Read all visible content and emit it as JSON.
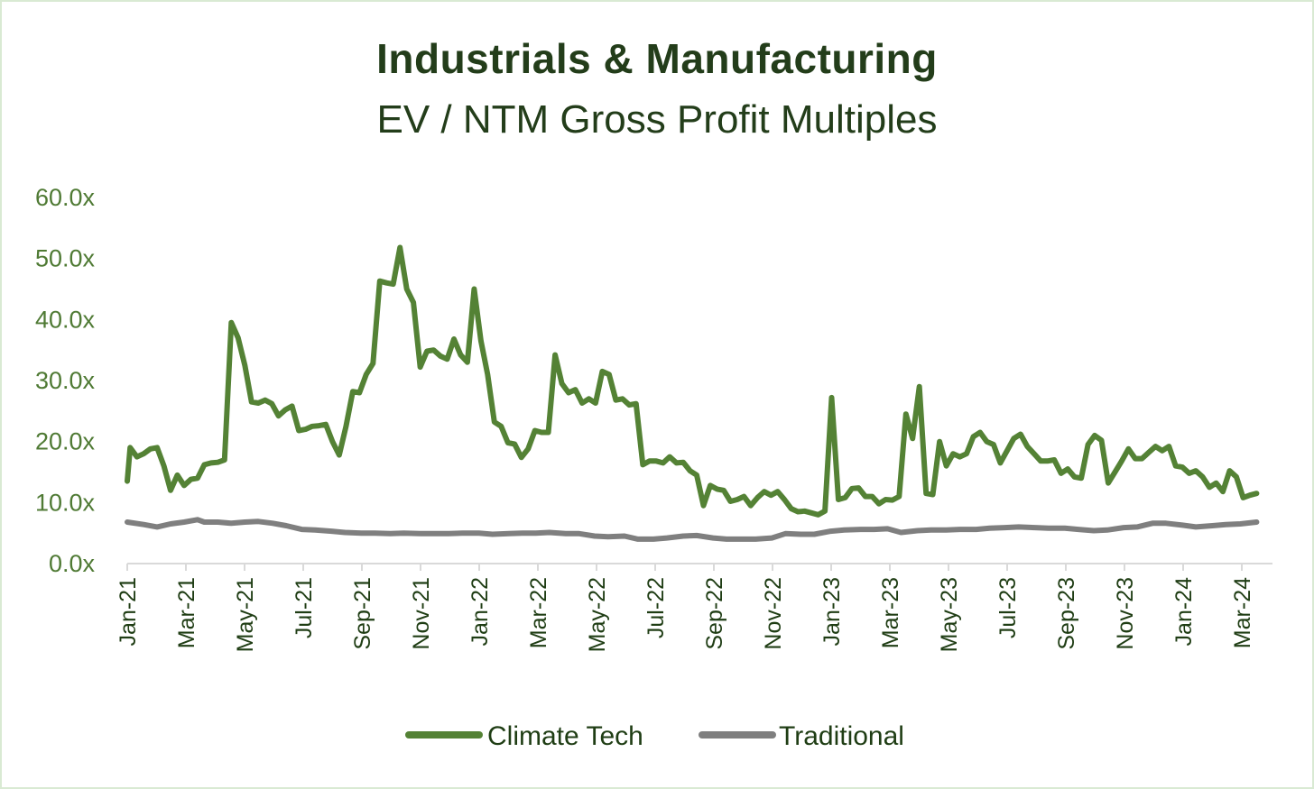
{
  "chart_data": {
    "type": "line",
    "title": "Industrials & Manufacturing",
    "subtitle": "EV / NTM Gross Profit Multiples",
    "xlabel": "",
    "ylabel": "",
    "ylim": [
      0,
      60
    ],
    "yticks": [
      "0.0x",
      "10.0x",
      "20.0x",
      "30.0x",
      "40.0x",
      "50.0x",
      "60.0x"
    ],
    "xticks": [
      "Jan-21",
      "Mar-21",
      "May-21",
      "Jul-21",
      "Sep-21",
      "Nov-21",
      "Jan-22",
      "Mar-22",
      "May-22",
      "Jul-22",
      "Sep-22",
      "Nov-22",
      "Jan-23",
      "Mar-23",
      "May-23",
      "Jul-23",
      "Sep-23",
      "Nov-23",
      "Jan-24",
      "Mar-24"
    ],
    "x_start": "2021-01-01",
    "x_end": "2024-03-25",
    "grid": false,
    "legend": "bottom",
    "series": [
      {
        "name": "Climate Tech",
        "color": "#548235",
        "points": [
          [
            "2021-01-01",
            13.5
          ],
          [
            "2021-01-04",
            19
          ],
          [
            "2021-01-11",
            17.5
          ],
          [
            "2021-01-18",
            18
          ],
          [
            "2021-01-25",
            18.8
          ],
          [
            "2021-02-01",
            19
          ],
          [
            "2021-02-08",
            16
          ],
          [
            "2021-02-15",
            12
          ],
          [
            "2021-02-22",
            14.5
          ],
          [
            "2021-03-01",
            12.8
          ],
          [
            "2021-03-08",
            13.8
          ],
          [
            "2021-03-15",
            14
          ],
          [
            "2021-03-22",
            16.2
          ],
          [
            "2021-03-29",
            16.5
          ],
          [
            "2021-04-05",
            16.6
          ],
          [
            "2021-04-12",
            17
          ],
          [
            "2021-04-19",
            39.5
          ],
          [
            "2021-04-26",
            37
          ],
          [
            "2021-05-03",
            32.5
          ],
          [
            "2021-05-10",
            26.5
          ],
          [
            "2021-05-17",
            26.3
          ],
          [
            "2021-05-24",
            26.8
          ],
          [
            "2021-05-31",
            26.2
          ],
          [
            "2021-06-07",
            24.2
          ],
          [
            "2021-06-14",
            25.2
          ],
          [
            "2021-06-21",
            25.8
          ],
          [
            "2021-06-28",
            21.8
          ],
          [
            "2021-07-05",
            22
          ],
          [
            "2021-07-12",
            22.5
          ],
          [
            "2021-07-19",
            22.6
          ],
          [
            "2021-07-26",
            22.8
          ],
          [
            "2021-08-02",
            20
          ],
          [
            "2021-08-09",
            17.8
          ],
          [
            "2021-08-16",
            22.5
          ],
          [
            "2021-08-23",
            28.2
          ],
          [
            "2021-08-30",
            28
          ],
          [
            "2021-09-06",
            31
          ],
          [
            "2021-09-13",
            32.8
          ],
          [
            "2021-09-20",
            46.3
          ],
          [
            "2021-09-27",
            46
          ],
          [
            "2021-10-04",
            45.8
          ],
          [
            "2021-10-11",
            51.8
          ],
          [
            "2021-10-18",
            45
          ],
          [
            "2021-10-25",
            42.8
          ],
          [
            "2021-11-01",
            32.2
          ],
          [
            "2021-11-08",
            34.8
          ],
          [
            "2021-11-15",
            35
          ],
          [
            "2021-11-22",
            34
          ],
          [
            "2021-11-29",
            33.5
          ],
          [
            "2021-12-06",
            36.8
          ],
          [
            "2021-12-13",
            34.2
          ],
          [
            "2021-12-20",
            33
          ],
          [
            "2021-12-27",
            45
          ],
          [
            "2022-01-03",
            36.5
          ],
          [
            "2022-01-10",
            31
          ],
          [
            "2022-01-17",
            23.2
          ],
          [
            "2022-01-24",
            22.5
          ],
          [
            "2022-01-31",
            19.8
          ],
          [
            "2022-02-07",
            19.6
          ],
          [
            "2022-02-14",
            17.4
          ],
          [
            "2022-02-21",
            18.8
          ],
          [
            "2022-02-28",
            21.8
          ],
          [
            "2022-03-07",
            21.5
          ],
          [
            "2022-03-14",
            21.5
          ],
          [
            "2022-03-21",
            34.2
          ],
          [
            "2022-03-28",
            29.5
          ],
          [
            "2022-04-04",
            28
          ],
          [
            "2022-04-11",
            28.5
          ],
          [
            "2022-04-18",
            26.3
          ],
          [
            "2022-04-25",
            27
          ],
          [
            "2022-05-02",
            26.3
          ],
          [
            "2022-05-09",
            31.5
          ],
          [
            "2022-05-16",
            31
          ],
          [
            "2022-05-23",
            26.8
          ],
          [
            "2022-05-30",
            27
          ],
          [
            "2022-06-06",
            26
          ],
          [
            "2022-06-13",
            26.2
          ],
          [
            "2022-06-20",
            16.2
          ],
          [
            "2022-06-27",
            16.8
          ],
          [
            "2022-07-04",
            16.8
          ],
          [
            "2022-07-11",
            16.5
          ],
          [
            "2022-07-18",
            17.5
          ],
          [
            "2022-07-25",
            16.5
          ],
          [
            "2022-08-01",
            16.6
          ],
          [
            "2022-08-08",
            15.2
          ],
          [
            "2022-08-15",
            14.5
          ],
          [
            "2022-08-22",
            9.5
          ],
          [
            "2022-08-29",
            12.8
          ],
          [
            "2022-09-05",
            12.2
          ],
          [
            "2022-09-12",
            12
          ],
          [
            "2022-09-19",
            10.2
          ],
          [
            "2022-09-26",
            10.5
          ],
          [
            "2022-10-03",
            11
          ],
          [
            "2022-10-10",
            9.5
          ],
          [
            "2022-10-17",
            10.8
          ],
          [
            "2022-10-24",
            11.8
          ],
          [
            "2022-10-31",
            11.2
          ],
          [
            "2022-11-07",
            11.8
          ],
          [
            "2022-11-14",
            10.5
          ],
          [
            "2022-11-21",
            9
          ],
          [
            "2022-11-28",
            8.5
          ],
          [
            "2022-12-05",
            8.6
          ],
          [
            "2022-12-12",
            8.3
          ],
          [
            "2022-12-19",
            8
          ],
          [
            "2022-12-26",
            8.6
          ],
          [
            "2023-01-02",
            27.2
          ],
          [
            "2023-01-09",
            10.5
          ],
          [
            "2023-01-16",
            10.8
          ],
          [
            "2023-01-23",
            12.3
          ],
          [
            "2023-01-30",
            12.4
          ],
          [
            "2023-02-06",
            11
          ],
          [
            "2023-02-13",
            11
          ],
          [
            "2023-02-20",
            9.8
          ],
          [
            "2023-02-27",
            10.5
          ],
          [
            "2023-03-06",
            10.4
          ],
          [
            "2023-03-13",
            11
          ],
          [
            "2023-03-20",
            24.5
          ],
          [
            "2023-03-27",
            20.5
          ],
          [
            "2023-04-03",
            29
          ],
          [
            "2023-04-10",
            11.5
          ],
          [
            "2023-04-17",
            11.3
          ],
          [
            "2023-04-24",
            20
          ],
          [
            "2023-05-01",
            16
          ],
          [
            "2023-05-08",
            18
          ],
          [
            "2023-05-15",
            17.5
          ],
          [
            "2023-05-22",
            18
          ],
          [
            "2023-05-29",
            20.8
          ],
          [
            "2023-06-05",
            21.5
          ],
          [
            "2023-06-12",
            20
          ],
          [
            "2023-06-19",
            19.5
          ],
          [
            "2023-06-26",
            16.5
          ],
          [
            "2023-07-03",
            18.5
          ],
          [
            "2023-07-10",
            20.5
          ],
          [
            "2023-07-17",
            21.2
          ],
          [
            "2023-07-24",
            19.2
          ],
          [
            "2023-07-31",
            18
          ],
          [
            "2023-08-07",
            16.8
          ],
          [
            "2023-08-14",
            16.8
          ],
          [
            "2023-08-21",
            17
          ],
          [
            "2023-08-28",
            14.8
          ],
          [
            "2023-09-04",
            15.5
          ],
          [
            "2023-09-11",
            14.2
          ],
          [
            "2023-09-18",
            14
          ],
          [
            "2023-09-25",
            19.5
          ],
          [
            "2023-10-02",
            21
          ],
          [
            "2023-10-09",
            20.2
          ],
          [
            "2023-10-16",
            13.2
          ],
          [
            "2023-10-23",
            15
          ],
          [
            "2023-10-30",
            16.8
          ],
          [
            "2023-11-06",
            18.8
          ],
          [
            "2023-11-13",
            17.2
          ],
          [
            "2023-11-20",
            17.2
          ],
          [
            "2023-11-27",
            18.2
          ],
          [
            "2023-12-04",
            19.2
          ],
          [
            "2023-12-11",
            18.5
          ],
          [
            "2023-12-18",
            19.2
          ],
          [
            "2023-12-25",
            16
          ],
          [
            "2024-01-01",
            15.8
          ],
          [
            "2024-01-08",
            14.8
          ],
          [
            "2024-01-15",
            15.2
          ],
          [
            "2024-01-22",
            14.2
          ],
          [
            "2024-01-29",
            12.5
          ],
          [
            "2024-02-05",
            13.2
          ],
          [
            "2024-02-12",
            11.8
          ],
          [
            "2024-02-19",
            15.2
          ],
          [
            "2024-02-26",
            14.2
          ],
          [
            "2024-03-04",
            10.8
          ],
          [
            "2024-03-11",
            11.2
          ],
          [
            "2024-03-18",
            11.5
          ]
        ]
      },
      {
        "name": "Traditional",
        "color": "#7f7f7f",
        "points": [
          [
            "2021-01-01",
            6.8
          ],
          [
            "2021-01-18",
            6.4
          ],
          [
            "2021-02-01",
            6
          ],
          [
            "2021-02-15",
            6.5
          ],
          [
            "2021-03-01",
            6.8
          ],
          [
            "2021-03-15",
            7.2
          ],
          [
            "2021-03-22",
            6.8
          ],
          [
            "2021-04-05",
            6.8
          ],
          [
            "2021-04-19",
            6.6
          ],
          [
            "2021-05-03",
            6.8
          ],
          [
            "2021-05-17",
            6.9
          ],
          [
            "2021-06-01",
            6.6
          ],
          [
            "2021-06-15",
            6.2
          ],
          [
            "2021-07-01",
            5.6
          ],
          [
            "2021-07-15",
            5.5
          ],
          [
            "2021-08-01",
            5.3
          ],
          [
            "2021-08-15",
            5.1
          ],
          [
            "2021-09-01",
            5
          ],
          [
            "2021-09-15",
            5
          ],
          [
            "2021-10-01",
            4.9
          ],
          [
            "2021-10-15",
            5
          ],
          [
            "2021-11-01",
            4.9
          ],
          [
            "2021-11-15",
            4.9
          ],
          [
            "2021-12-01",
            4.9
          ],
          [
            "2021-12-15",
            5
          ],
          [
            "2022-01-01",
            5
          ],
          [
            "2022-01-15",
            4.8
          ],
          [
            "2022-02-01",
            4.9
          ],
          [
            "2022-02-15",
            5
          ],
          [
            "2022-03-01",
            5
          ],
          [
            "2022-03-15",
            5.1
          ],
          [
            "2022-04-01",
            4.9
          ],
          [
            "2022-04-15",
            4.9
          ],
          [
            "2022-05-01",
            4.5
          ],
          [
            "2022-05-15",
            4.4
          ],
          [
            "2022-06-01",
            4.5
          ],
          [
            "2022-06-15",
            4
          ],
          [
            "2022-07-01",
            4
          ],
          [
            "2022-07-15",
            4.2
          ],
          [
            "2022-08-01",
            4.5
          ],
          [
            "2022-08-15",
            4.6
          ],
          [
            "2022-09-01",
            4.2
          ],
          [
            "2022-09-15",
            4
          ],
          [
            "2022-10-01",
            4
          ],
          [
            "2022-10-15",
            4
          ],
          [
            "2022-11-01",
            4.2
          ],
          [
            "2022-11-15",
            4.9
          ],
          [
            "2022-12-01",
            4.8
          ],
          [
            "2022-12-15",
            4.8
          ],
          [
            "2023-01-01",
            5.3
          ],
          [
            "2023-01-15",
            5.5
          ],
          [
            "2023-02-01",
            5.6
          ],
          [
            "2023-02-15",
            5.6
          ],
          [
            "2023-03-01",
            5.7
          ],
          [
            "2023-03-15",
            5.1
          ],
          [
            "2023-04-01",
            5.4
          ],
          [
            "2023-04-15",
            5.5
          ],
          [
            "2023-05-01",
            5.5
          ],
          [
            "2023-05-15",
            5.6
          ],
          [
            "2023-06-01",
            5.6
          ],
          [
            "2023-06-15",
            5.8
          ],
          [
            "2023-07-01",
            5.9
          ],
          [
            "2023-07-15",
            6
          ],
          [
            "2023-08-01",
            5.9
          ],
          [
            "2023-08-15",
            5.8
          ],
          [
            "2023-09-01",
            5.8
          ],
          [
            "2023-09-15",
            5.6
          ],
          [
            "2023-10-01",
            5.4
          ],
          [
            "2023-10-15",
            5.5
          ],
          [
            "2023-11-01",
            5.9
          ],
          [
            "2023-11-15",
            6
          ],
          [
            "2023-12-01",
            6.6
          ],
          [
            "2023-12-15",
            6.6
          ],
          [
            "2024-01-01",
            6.3
          ],
          [
            "2024-01-15",
            6
          ],
          [
            "2024-02-01",
            6.2
          ],
          [
            "2024-02-15",
            6.4
          ],
          [
            "2024-03-01",
            6.5
          ],
          [
            "2024-03-18",
            6.8
          ]
        ]
      }
    ]
  }
}
